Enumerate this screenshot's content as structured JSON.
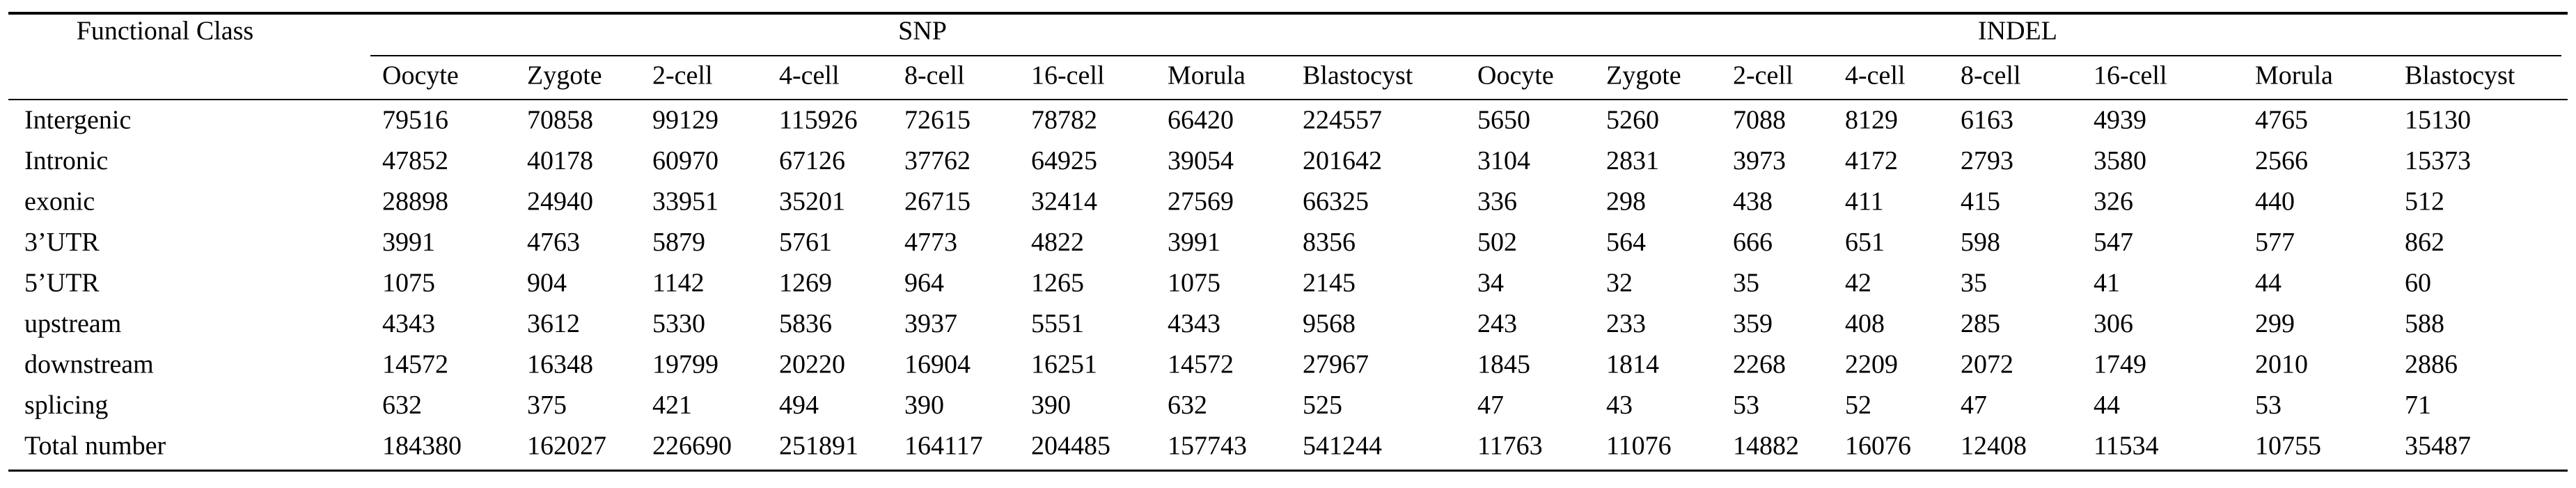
{
  "table": {
    "header": {
      "functional_class": "Functional Class",
      "groups": [
        "SNP",
        "INDEL"
      ],
      "stages": [
        "Oocyte",
        "Zygote",
        "2-cell",
        "4-cell",
        "8-cell",
        "16-cell",
        "Morula",
        "Blastocyst",
        "Oocyte",
        "Zygote",
        "2-cell",
        "4-cell",
        "8-cell",
        "16-cell",
        "Morula",
        "Blastocyst"
      ]
    },
    "rows": [
      {
        "label": "Intergenic",
        "values": [
          79516,
          70858,
          99129,
          115926,
          72615,
          78782,
          66420,
          224557,
          5650,
          5260,
          7088,
          8129,
          6163,
          4939,
          4765,
          15130
        ]
      },
      {
        "label": "Intronic",
        "values": [
          47852,
          40178,
          60970,
          67126,
          37762,
          64925,
          39054,
          201642,
          3104,
          2831,
          3973,
          4172,
          2793,
          3580,
          2566,
          15373
        ]
      },
      {
        "label": "exonic",
        "values": [
          28898,
          24940,
          33951,
          35201,
          26715,
          32414,
          27569,
          66325,
          336,
          298,
          438,
          411,
          415,
          326,
          440,
          512
        ]
      },
      {
        "label": "3’UTR",
        "values": [
          3991,
          4763,
          5879,
          5761,
          4773,
          4822,
          3991,
          8356,
          502,
          564,
          666,
          651,
          598,
          547,
          577,
          862
        ]
      },
      {
        "label": "5’UTR",
        "values": [
          1075,
          904,
          1142,
          1269,
          964,
          1265,
          1075,
          2145,
          34,
          32,
          35,
          42,
          35,
          41,
          44,
          60
        ]
      },
      {
        "label": "upstream",
        "values": [
          4343,
          3612,
          5330,
          5836,
          3937,
          5551,
          4343,
          9568,
          243,
          233,
          359,
          408,
          285,
          306,
          299,
          588
        ]
      },
      {
        "label": "downstream",
        "values": [
          14572,
          16348,
          19799,
          20220,
          16904,
          16251,
          14572,
          27967,
          1845,
          1814,
          2268,
          2209,
          2072,
          1749,
          2010,
          2886
        ]
      },
      {
        "label": "splicing",
        "values": [
          632,
          375,
          421,
          494,
          390,
          390,
          632,
          525,
          47,
          43,
          53,
          52,
          47,
          44,
          53,
          71
        ]
      },
      {
        "label": "Total number",
        "values": [
          184380,
          162027,
          226690,
          251891,
          164117,
          204485,
          157743,
          541244,
          11763,
          11076,
          14882,
          16076,
          12408,
          11534,
          10755,
          35487
        ]
      }
    ]
  }
}
